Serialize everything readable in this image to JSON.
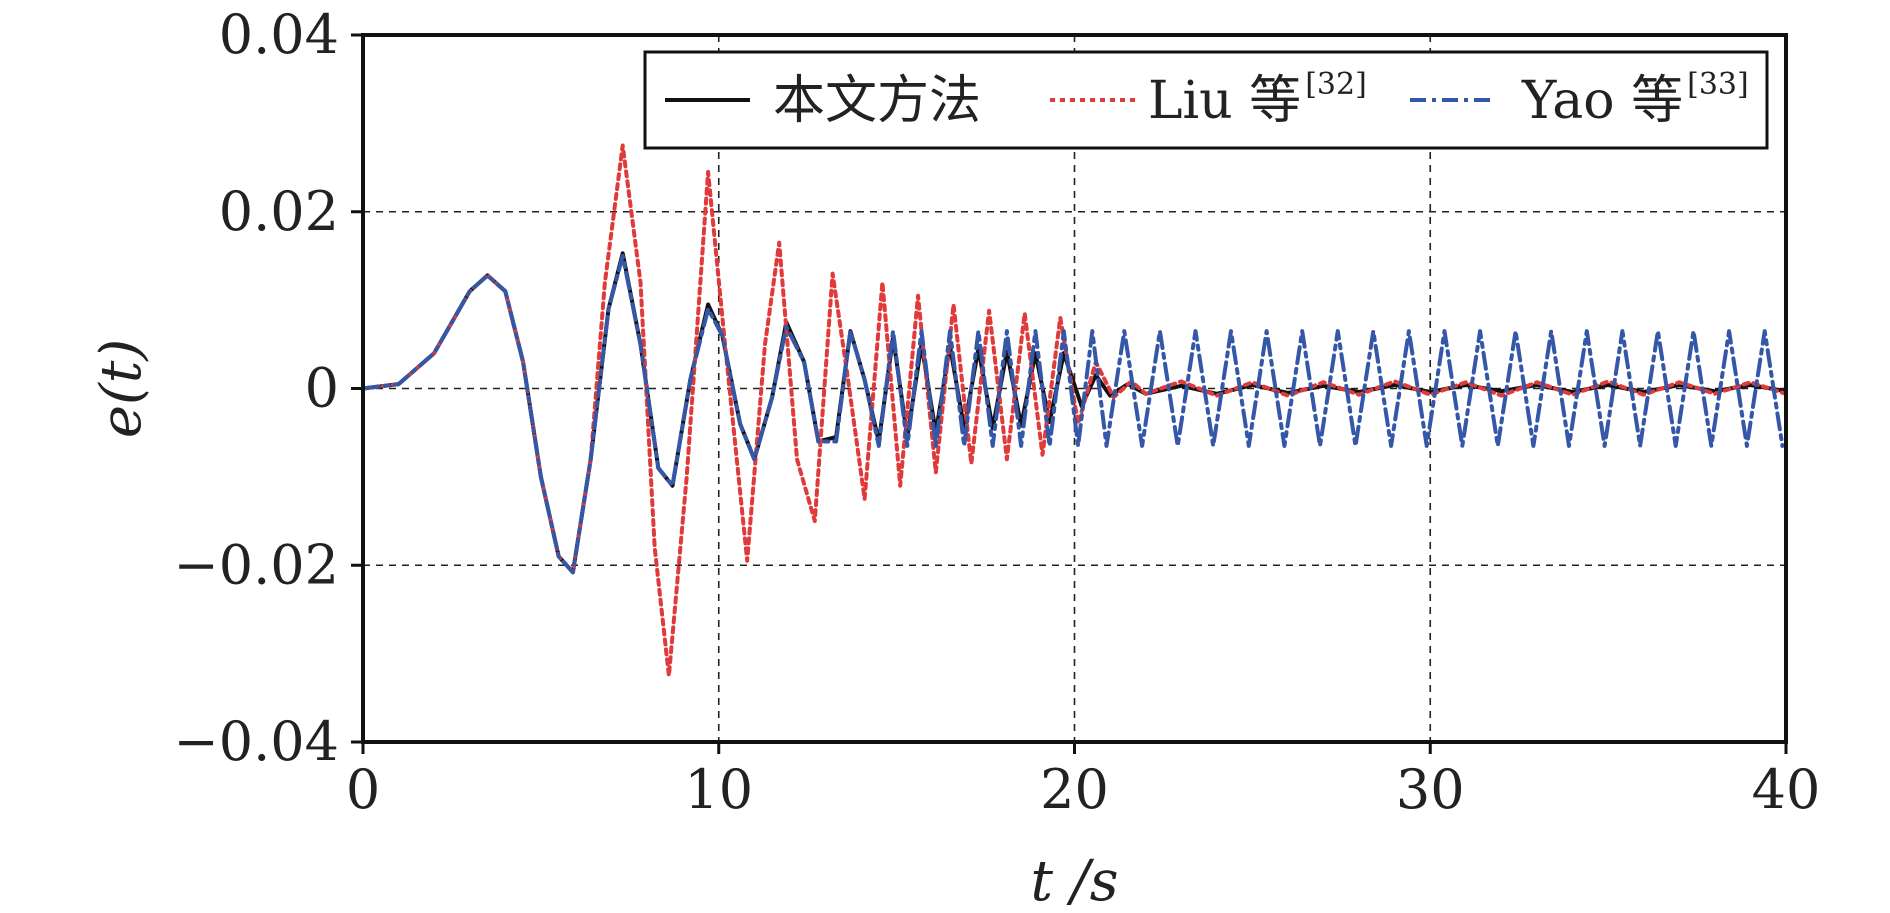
{
  "chart_data": {
    "type": "line",
    "title": "",
    "xlabel": "t /s",
    "ylabel": "e(t)",
    "xlim": [
      0,
      40
    ],
    "ylim": [
      -0.04,
      0.04
    ],
    "xticks": [
      0,
      10,
      20,
      30,
      40
    ],
    "yticks": [
      -0.04,
      -0.02,
      0,
      0.02,
      0.04
    ],
    "xtick_labels": [
      "0",
      "10",
      "20",
      "30",
      "40"
    ],
    "ytick_labels": [
      "−0.04",
      "−0.02",
      "0",
      "0.02",
      "0.04"
    ],
    "grid": "dashed",
    "legend_position": "top-right",
    "series": [
      {
        "name": "本文方法",
        "ref": "",
        "color": "#111111",
        "style": "solid",
        "x": [
          0,
          1,
          2,
          3,
          3.5,
          4,
          4.5,
          5,
          5.5,
          5.9,
          6.4,
          6.9,
          7.3,
          7.8,
          8.3,
          8.7,
          9.2,
          9.7,
          10.1,
          10.6,
          11.0,
          11.5,
          11.9,
          12.4,
          12.8,
          13.3,
          13.7,
          14.1,
          14.5,
          14.9,
          15.3,
          15.7,
          16.1,
          16.5,
          16.9,
          17.3,
          17.7,
          18.1,
          18.5,
          18.9,
          19.3,
          19.7,
          20.2,
          20.6,
          21.0,
          21.5,
          22,
          23,
          24,
          25,
          26,
          27,
          28,
          29,
          30,
          31,
          32,
          33,
          34,
          35,
          36,
          37,
          38,
          39,
          40
        ],
        "y": [
          0,
          0.0005,
          0.004,
          0.011,
          0.0128,
          0.011,
          0.003,
          -0.01,
          -0.019,
          -0.0208,
          -0.008,
          0.009,
          0.0153,
          0.005,
          -0.009,
          -0.011,
          0.001,
          0.0095,
          0.006,
          -0.004,
          -0.008,
          -0.001,
          0.0075,
          0.003,
          -0.006,
          -0.0055,
          0.0065,
          0.001,
          -0.006,
          0.0058,
          -0.0055,
          0.005,
          -0.005,
          0.0048,
          -0.0045,
          0.0045,
          -0.0045,
          0.0042,
          -0.0042,
          0.004,
          -0.0038,
          0.004,
          -0.002,
          0.0015,
          -0.0008,
          0.0005,
          -0.0006,
          0.0003,
          -0.0006,
          0.0004,
          -0.0005,
          0.0003,
          -0.0004,
          0.0004,
          -0.0004,
          0.0004,
          -0.0003,
          0.0004,
          -0.0004,
          0.0004,
          -0.0004,
          0.0004,
          -0.0003,
          0.0004,
          -0.0003
        ]
      },
      {
        "name": "Liu 等",
        "ref": "[32]",
        "color": "#e03a3a",
        "style": "dotted",
        "x": [
          0,
          1,
          2,
          3,
          3.5,
          4,
          4.5,
          5,
          5.5,
          5.9,
          6.4,
          6.8,
          7.3,
          7.8,
          8.2,
          8.6,
          9.1,
          9.7,
          10.2,
          10.8,
          11.3,
          11.7,
          12.2,
          12.7,
          13.2,
          13.6,
          14.1,
          14.6,
          15.1,
          15.6,
          16.1,
          16.6,
          17.1,
          17.6,
          18.1,
          18.6,
          19.1,
          19.6,
          20.1,
          20.6,
          21.1,
          21.6,
          22,
          23,
          24,
          25,
          26,
          27,
          28,
          29,
          30,
          31,
          32,
          33,
          34,
          35,
          36,
          37,
          38,
          39,
          40
        ],
        "y": [
          0,
          0.0005,
          0.004,
          0.011,
          0.0128,
          0.011,
          0.003,
          -0.01,
          -0.019,
          -0.0208,
          -0.008,
          0.012,
          0.0275,
          0.012,
          -0.018,
          -0.0325,
          -0.01,
          0.0245,
          0.004,
          -0.0195,
          0.005,
          0.0165,
          -0.008,
          -0.015,
          0.013,
          0.002,
          -0.0125,
          0.012,
          -0.011,
          0.0105,
          -0.0095,
          0.0095,
          -0.0085,
          0.0088,
          -0.008,
          0.0085,
          -0.0075,
          0.008,
          -0.004,
          0.003,
          -0.001,
          0.0008,
          -0.0006,
          0.0008,
          -0.0008,
          0.0007,
          -0.0008,
          0.0007,
          -0.0007,
          0.0008,
          -0.0007,
          0.0007,
          -0.0008,
          0.0007,
          -0.0007,
          0.0008,
          -0.0007,
          0.0007,
          -0.0006,
          0.0007,
          -0.0006
        ]
      },
      {
        "name": "Yao 等",
        "ref": "[33]",
        "color": "#3457a8",
        "style": "dashdot",
        "x": [
          0,
          1,
          2,
          3,
          3.5,
          4,
          4.5,
          5,
          5.5,
          5.9,
          6.4,
          6.9,
          7.3,
          7.8,
          8.3,
          8.7,
          9.2,
          9.7,
          10.1,
          10.6,
          11.0,
          11.5,
          11.9,
          12.4,
          12.8,
          13.3,
          13.7,
          14.1,
          14.5,
          14.9,
          15.3,
          15.7,
          16.1,
          16.5,
          16.9,
          17.3,
          17.7,
          18.1,
          18.5,
          18.9,
          19.3,
          19.7,
          20.1,
          20.5,
          20.9,
          21.4,
          21.9,
          22.4,
          22.9,
          23.4,
          23.9,
          24.4,
          24.9,
          25.4,
          25.9,
          26.4,
          26.9,
          27.4,
          27.9,
          28.4,
          28.9,
          29.4,
          29.9,
          30.4,
          30.9,
          31.4,
          31.9,
          32.4,
          32.9,
          33.4,
          33.9,
          34.4,
          34.9,
          35.4,
          35.9,
          36.4,
          36.9,
          37.4,
          37.9,
          38.4,
          38.9,
          39.4,
          39.9
        ],
        "y": [
          0,
          0.0005,
          0.004,
          0.011,
          0.0128,
          0.011,
          0.003,
          -0.01,
          -0.019,
          -0.0208,
          -0.008,
          0.009,
          0.015,
          0.005,
          -0.009,
          -0.011,
          0.001,
          0.009,
          0.006,
          -0.004,
          -0.008,
          -0.001,
          0.007,
          0.003,
          -0.006,
          -0.006,
          0.0065,
          0.001,
          -0.0065,
          0.0065,
          -0.0065,
          0.0065,
          -0.0065,
          0.0065,
          -0.0065,
          0.0065,
          -0.0065,
          0.0065,
          -0.0065,
          0.0065,
          -0.0065,
          0.0065,
          -0.0065,
          0.0065,
          -0.0065,
          0.0065,
          -0.0065,
          0.0065,
          -0.0065,
          0.0065,
          -0.0065,
          0.0065,
          -0.0065,
          0.0065,
          -0.0065,
          0.0065,
          -0.0065,
          0.0065,
          -0.0065,
          0.0065,
          -0.0065,
          0.0065,
          -0.0065,
          0.0065,
          -0.0065,
          0.0065,
          -0.0065,
          0.0065,
          -0.0065,
          0.0065,
          -0.0065,
          0.0065,
          -0.0065,
          0.0065,
          -0.0065,
          0.0065,
          -0.0065,
          0.0065,
          -0.0065,
          0.0065,
          -0.0065,
          0.0065,
          -0.0065
        ]
      }
    ]
  }
}
